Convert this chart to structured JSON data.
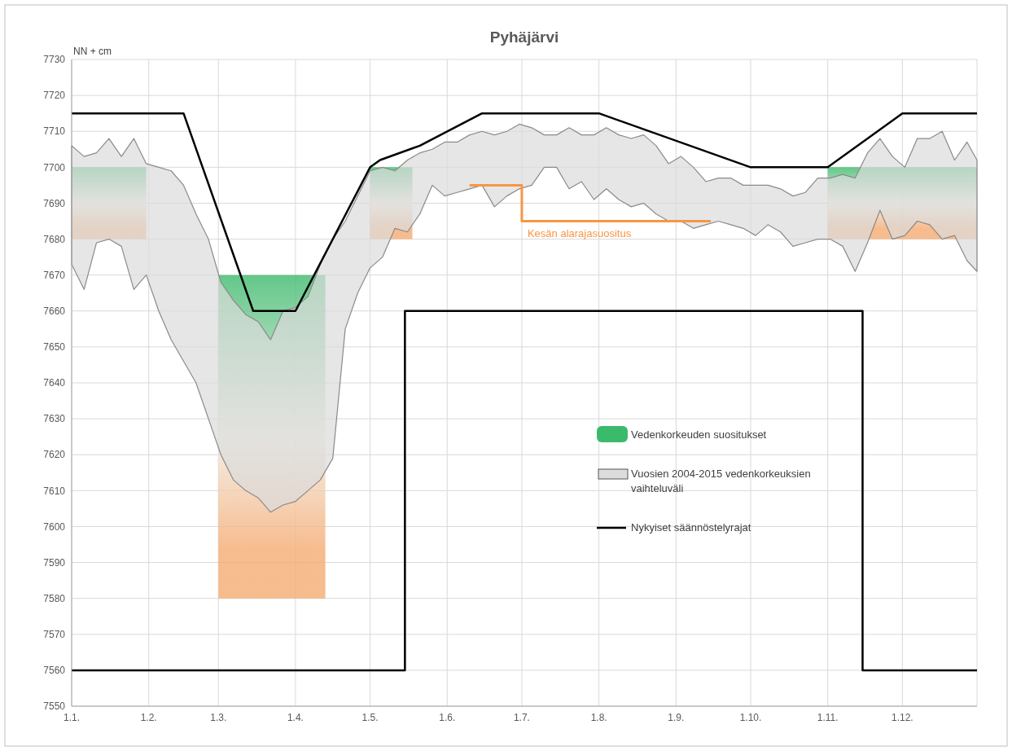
{
  "chart_data": {
    "type": "line",
    "title": "Pyhäjärvi",
    "ylabel": "NN + cm",
    "xlim": [
      "--01-01",
      "--12-31"
    ],
    "xticks": [
      {
        "value": "--01-01",
        "label": "1.1."
      },
      {
        "value": "--02-01",
        "label": "1.2."
      },
      {
        "value": "--03-01",
        "label": "1.3."
      },
      {
        "value": "--04-01",
        "label": "1.4."
      },
      {
        "value": "--05-01",
        "label": "1.5."
      },
      {
        "value": "--06-01",
        "label": "1.6."
      },
      {
        "value": "--07-01",
        "label": "1.7."
      },
      {
        "value": "--08-01",
        "label": "1.8."
      },
      {
        "value": "--09-01",
        "label": "1.9."
      },
      {
        "value": "--10-01",
        "label": "1.10."
      },
      {
        "value": "--11-01",
        "label": "1.11."
      },
      {
        "value": "--12-01",
        "label": "1.12."
      }
    ],
    "ylim": [
      7550,
      7730
    ],
    "yticks": [
      7550,
      7560,
      7570,
      7580,
      7590,
      7600,
      7610,
      7620,
      7630,
      7640,
      7650,
      7660,
      7670,
      7680,
      7690,
      7700,
      7710,
      7720,
      7730
    ],
    "grid": true,
    "legend": "right",
    "series": [
      {
        "name": "Vedenkorkeuden suositukset",
        "color": "#3cba6c",
        "colors": [
          "#f5ab72",
          "#f5ab72"
        ],
        "x": [
          "--01-01",
          "--01-31"
        ],
        "values": [
          null,
          null
        ],
        "lower": [
          7680,
          7680
        ],
        "upper": [
          7700,
          7700
        ]
      },
      {
        "name": "Vuosien 2004-2015 vedenkorkeuksien vaihteluväli",
        "color": "#dcdcdc",
        "x": [
          "--01-01",
          "--01-06",
          "--01-11",
          "--01-16",
          "--01-21",
          "--01-26",
          "--01-31",
          "--02-05",
          "--02-10",
          "--02-15",
          "--02-20",
          "--02-25",
          "--03-02",
          "--03-07",
          "--03-12",
          "--03-17",
          "--03-22",
          "--03-27",
          "--04-01",
          "--04-06",
          "--04-11",
          "--04-16",
          "--04-21",
          "--04-26",
          "--05-01",
          "--05-06",
          "--05-11",
          "--05-16",
          "--05-21",
          "--05-26",
          "--05-31",
          "--06-05",
          "--06-10",
          "--06-15",
          "--06-20",
          "--06-25",
          "--06-30",
          "--07-05",
          "--07-10",
          "--07-15",
          "--07-20",
          "--07-25",
          "--07-30",
          "--08-04",
          "--08-09",
          "--08-14",
          "--08-19",
          "--08-24",
          "--08-29",
          "--09-03",
          "--09-08",
          "--09-13",
          "--09-18",
          "--09-23",
          "--09-28",
          "--10-03",
          "--10-08",
          "--10-13",
          "--10-18",
          "--10-23",
          "--10-28",
          "--11-02",
          "--11-07",
          "--11-12",
          "--11-17",
          "--11-22",
          "--11-27",
          "--12-02",
          "--12-07",
          "--12-12",
          "--12-17",
          "--12-22",
          "--12-27",
          "--12-31"
        ],
        "values": [
          null,
          null,
          null,
          null,
          null,
          null,
          null,
          null,
          null,
          null,
          null,
          null,
          null,
          null,
          null,
          null,
          null,
          null,
          null,
          null,
          null,
          null,
          null,
          null,
          null,
          null,
          null,
          null,
          null,
          null,
          null,
          null,
          null,
          null,
          null,
          null,
          null,
          null,
          null,
          null,
          null,
          null,
          null,
          null,
          null,
          null,
          null,
          null,
          null,
          null,
          null,
          null,
          null,
          null,
          null,
          null,
          null,
          null,
          null,
          null,
          null,
          null,
          null,
          null,
          null,
          null,
          null,
          null,
          null,
          null,
          null,
          null,
          null,
          null
        ],
        "upper": [
          7706,
          7703,
          7704,
          7708,
          7703,
          7708,
          7701,
          7700,
          7699,
          7695,
          7687,
          7680,
          7668,
          7663,
          7659,
          7657,
          7652,
          7660,
          7661,
          7664,
          7673,
          7680,
          7685,
          7692,
          7699,
          7700,
          7699,
          7702,
          7704,
          7705,
          7707,
          7707,
          7709,
          7710,
          7709,
          7710,
          7712,
          7711,
          7709,
          7709,
          7711,
          7709,
          7709,
          7711,
          7709,
          7708,
          7709,
          7706,
          7701,
          7703,
          7700,
          7696,
          7697,
          7697,
          7695,
          7695,
          7695,
          7694,
          7692,
          7693,
          7697,
          7697,
          7698,
          7697,
          7704,
          7708,
          7703,
          7700,
          7708,
          7708,
          7710,
          7702,
          7707,
          7702
        ],
        "lower": [
          7673,
          7666,
          7679,
          7680,
          7678,
          7666,
          7670,
          7660,
          7652,
          7646,
          7640,
          7630,
          7620,
          7613,
          7610,
          7608,
          7604,
          7606,
          7607,
          7610,
          7613,
          7619,
          7655,
          7665,
          7672,
          7675,
          7683,
          7682,
          7687,
          7695,
          7692,
          7693,
          7694,
          7695,
          7689,
          7692,
          7694,
          7695,
          7700,
          7700,
          7694,
          7696,
          7691,
          7694,
          7691,
          7689,
          7690,
          7687,
          7685,
          7685,
          7683,
          7684,
          7685,
          7684,
          7683,
          7681,
          7684,
          7682,
          7678,
          7679,
          7680,
          7680,
          7678,
          7671,
          7679,
          7688,
          7680,
          7681,
          7685,
          7684,
          7680,
          7681,
          7674,
          7671
        ]
      },
      {
        "color": "#3cba6c",
        "colors": [
          "#f5ab72",
          "#f5ab72"
        ],
        "x": [
          "--03-01",
          "--04-13"
        ],
        "values": [
          null,
          null
        ],
        "lower": [
          7580,
          7580
        ],
        "upper": [
          7670,
          7670
        ]
      },
      {
        "color": "#3cba6c",
        "colors": [
          "#f5ab72",
          "#f5ab72"
        ],
        "x": [
          "--05-01",
          "--05-18"
        ],
        "values": [
          null,
          null
        ],
        "lower": [
          7680,
          7680
        ],
        "upper": [
          7700,
          7700
        ]
      },
      {
        "color": "#3cba6c",
        "colors": [
          "#f5ab72",
          "#f5ab72"
        ],
        "x": [
          "--11-01",
          "--12-31"
        ],
        "values": [
          null,
          null
        ],
        "lower": [
          7680,
          7680
        ],
        "upper": [
          7700,
          7700
        ]
      },
      {
        "type": "line",
        "name": "Nykyiset säännöstelyrajat",
        "color": "#000000",
        "x": [
          "--01-01",
          "--02-15",
          "--03-15",
          "--04-01",
          "--05-01",
          "--05-05",
          "--05-21",
          "--06-15",
          "--08-01",
          "--10-01",
          "--11-01",
          "--12-01",
          "--12-31"
        ],
        "values": [
          7715,
          7715,
          7660,
          7660,
          7700,
          7702,
          7706,
          7715,
          7715,
          7700,
          7700,
          7715,
          7715
        ]
      },
      {
        "type": "line",
        "color": "#000000",
        "x": [
          "--01-01",
          "--05-15",
          "--05-15",
          "--11-15",
          "--11-15",
          "--12-31"
        ],
        "values": [
          7560,
          7560,
          7660,
          7660,
          7560,
          7560
        ]
      },
      {
        "type": "step",
        "name": "Kesän alarajasuositus",
        "color": "#f79646",
        "x": [
          "--06-10",
          "--07-01",
          "--09-15"
        ],
        "values": [
          7695,
          7685,
          7685
        ]
      }
    ]
  }
}
